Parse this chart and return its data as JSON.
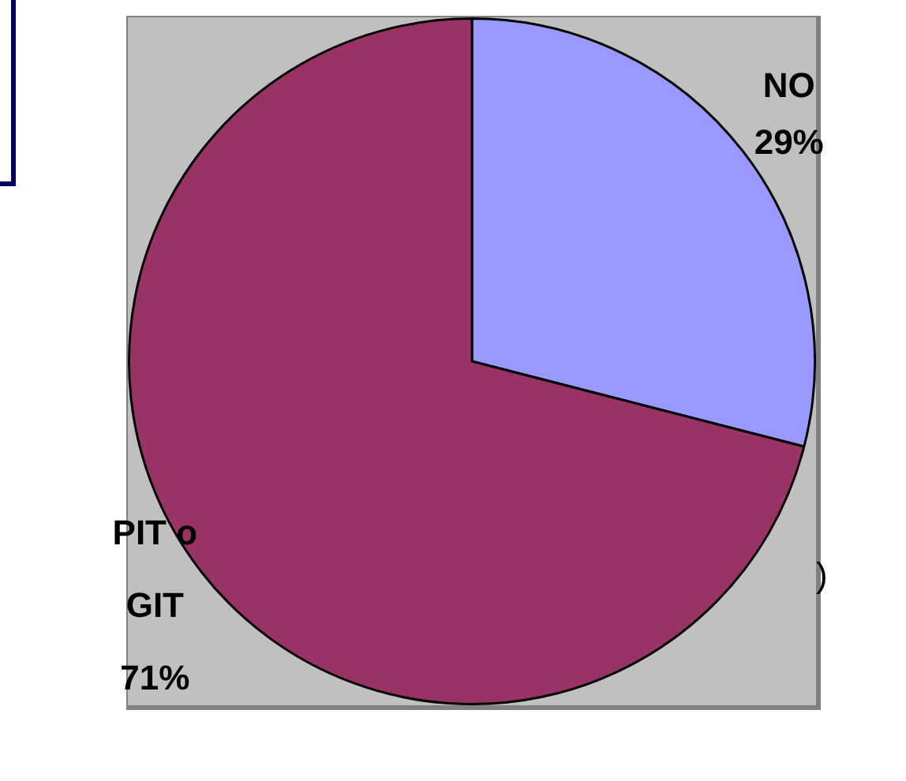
{
  "chart_data": {
    "type": "pie",
    "categories": [
      "NO",
      "PIT o GIT"
    ],
    "values": [
      29,
      71
    ],
    "colors": [
      "#9999ff",
      "#993366"
    ],
    "value_labels": [
      "29%",
      "71%"
    ],
    "legend": false,
    "annotations": [
      ")"
    ]
  }
}
